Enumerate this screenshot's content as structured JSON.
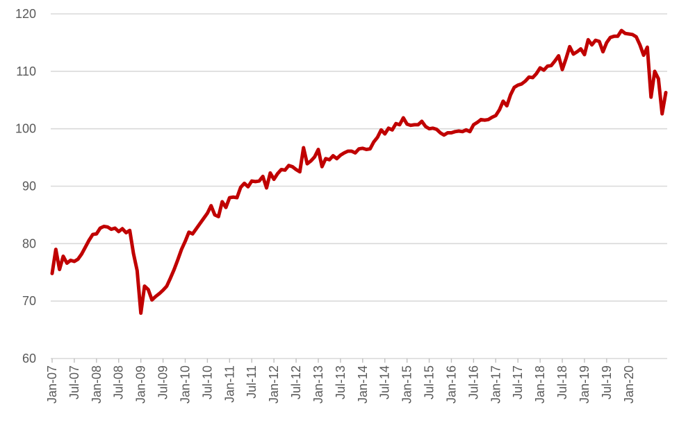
{
  "chart_data": {
    "type": "line",
    "title": "",
    "xlabel": "",
    "ylabel": "",
    "ylim": [
      60,
      120
    ],
    "y_ticks": [
      60,
      70,
      80,
      90,
      100,
      110,
      120
    ],
    "grid": "horizontal",
    "x_ticks": [
      "Jan-07",
      "Jul-07",
      "Jan-08",
      "Jul-08",
      "Jan-09",
      "Jul-09",
      "Jan-10",
      "Jul-10",
      "Jan-11",
      "Jul-11",
      "Jan-12",
      "Jul-12",
      "Jan-13",
      "Jul-13",
      "Jan-14",
      "Jul-14",
      "Jan-15",
      "Jul-15",
      "Jan-16",
      "Jul-16",
      "Jan-17",
      "Jul-17",
      "Jan-18",
      "Jul-18",
      "Jan-19",
      "Jul-19",
      "Jan-20"
    ],
    "x_start": "Jan-07",
    "x_end": "Oct-20",
    "series": [
      {
        "color": "#c00000",
        "values": [
          74.8,
          79.0,
          75.5,
          77.8,
          76.6,
          77.1,
          76.9,
          77.3,
          78.2,
          79.4,
          80.6,
          81.6,
          81.7,
          82.7,
          83.0,
          82.9,
          82.5,
          82.7,
          82.1,
          82.6,
          81.9,
          82.3,
          78.3,
          75.3,
          67.9,
          72.6,
          72.0,
          70.2,
          70.8,
          71.3,
          71.9,
          72.6,
          74.0,
          75.5,
          77.2,
          79.0,
          80.4,
          82.0,
          81.7,
          82.6,
          83.5,
          84.4,
          85.3,
          86.6,
          85.0,
          84.7,
          87.3,
          86.3,
          88.0,
          88.1,
          88.0,
          89.8,
          90.5,
          89.9,
          90.9,
          90.8,
          90.9,
          91.7,
          89.7,
          92.3,
          91.2,
          92.2,
          92.9,
          92.8,
          93.6,
          93.4,
          92.9,
          92.5,
          96.7,
          93.9,
          94.4,
          95.1,
          96.4,
          93.4,
          94.8,
          94.6,
          95.3,
          94.8,
          95.4,
          95.8,
          96.1,
          96.1,
          95.8,
          96.5,
          96.6,
          96.4,
          96.5,
          97.7,
          98.5,
          99.8,
          99.1,
          100.1,
          99.8,
          100.9,
          100.7,
          101.9,
          100.8,
          100.6,
          100.7,
          100.7,
          101.3,
          100.4,
          100.0,
          100.1,
          99.9,
          99.3,
          98.9,
          99.3,
          99.3,
          99.5,
          99.6,
          99.5,
          99.8,
          99.5,
          100.7,
          101.1,
          101.6,
          101.5,
          101.6,
          102.0,
          102.3,
          103.3,
          104.8,
          104.0,
          105.9,
          107.2,
          107.6,
          107.8,
          108.3,
          109.0,
          108.9,
          109.6,
          110.6,
          110.2,
          110.9,
          111.0,
          111.8,
          112.7,
          110.3,
          112.2,
          114.3,
          113.0,
          113.4,
          113.9,
          112.9,
          115.5,
          114.6,
          115.4,
          115.2,
          113.4,
          115.0,
          115.9,
          116.1,
          116.1,
          117.1,
          116.6,
          116.5,
          116.4,
          116.0,
          114.6,
          112.8,
          114.2,
          105.5,
          110.0,
          108.7,
          102.6,
          106.3
        ]
      }
    ]
  }
}
